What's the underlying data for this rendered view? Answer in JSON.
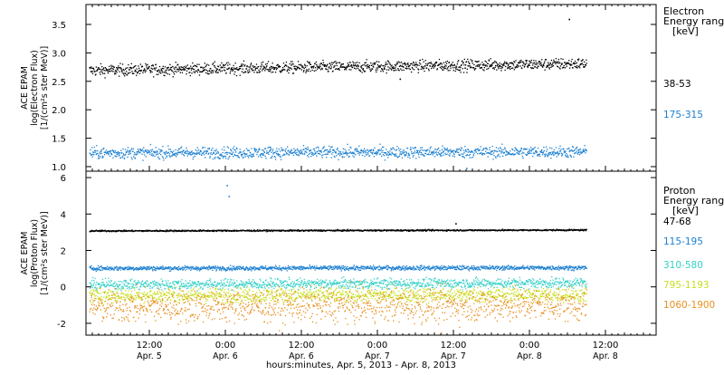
{
  "x_axis": {
    "label": "hours:minutes, Apr.  5, 2013 - Apr.  8, 2013",
    "ticks": [
      {
        "t": 12,
        "time": "12:00",
        "date": "Apr. 5"
      },
      {
        "t": 24,
        "time": "0:00",
        "date": "Apr. 6"
      },
      {
        "t": 36,
        "time": "12:00",
        "date": "Apr. 6"
      },
      {
        "t": 48,
        "time": "0:00",
        "date": "Apr. 7"
      },
      {
        "t": 60,
        "time": "12:00",
        "date": "Apr. 7"
      },
      {
        "t": 72,
        "time": "0:00",
        "date": "Apr. 8"
      },
      {
        "t": 84,
        "time": "12:00",
        "date": "Apr. 8"
      }
    ]
  },
  "chart_data": [
    {
      "type": "scatter",
      "panel": "electron",
      "ylabel": [
        "ACE EPAM",
        "log(Electron Flux)",
        "[1/(cm²s ster MeV)]"
      ],
      "ylim": [
        0.92,
        3.85
      ],
      "yticks": [
        "1.0",
        "1.5",
        "2.0",
        "2.5",
        "3.0",
        "3.5"
      ],
      "legend_title": [
        "Electron",
        "Energy range",
        "[keV]"
      ],
      "series": [
        {
          "name": "38-53",
          "color": "#000000",
          "level": 2.7,
          "trend_end": 2.82,
          "spread": 0.05,
          "outliers": [
            [
              78.2,
              3.6
            ],
            [
              51.5,
              2.55
            ]
          ]
        },
        {
          "name": "175-315",
          "color": "#1a7fd0",
          "level": 1.25,
          "trend_end": 1.27,
          "spread": 0.05,
          "outliers": [
            [
              31,
              1.35
            ],
            [
              62,
              0.98
            ]
          ]
        }
      ]
    },
    {
      "type": "scatter",
      "panel": "proton",
      "ylabel": [
        "ACE EPAM",
        "log(Proton Flux)",
        "[1/(cm²s ster MeV)]"
      ],
      "ylim": [
        -2.65,
        6.35
      ],
      "yticks": [
        "-2",
        "0",
        "2",
        "4",
        "6"
      ],
      "legend_title": [
        "Proton",
        "Energy range",
        "[keV]"
      ],
      "series": [
        {
          "name": "47-68",
          "color": "#000000",
          "level": 3.1,
          "trend_end": 3.15,
          "spread": 0.02,
          "outliers": [
            [
              60.3,
              3.5
            ]
          ]
        },
        {
          "name": "115-195",
          "color": "#1a7fd0",
          "level": 1.05,
          "trend_end": 1.08,
          "spread": 0.06,
          "outliers": [
            [
              24.2,
              5.6
            ],
            [
              24.5,
              5.0
            ]
          ]
        },
        {
          "name": "310-580",
          "color": "#33d0c8",
          "level": 0.15,
          "trend_end": 0.25,
          "spread": 0.14,
          "outliers": []
        },
        {
          "name": "795-1193",
          "color": "#c8e020",
          "level": -0.45,
          "trend_end": -0.4,
          "spread": 0.2,
          "outliers": []
        },
        {
          "name": "1060-1900",
          "color": "#e89020",
          "level": -1.05,
          "trend_end": -0.95,
          "spread": 0.45,
          "outliers": [
            [
              58,
              -2.5
            ]
          ]
        }
      ]
    }
  ]
}
